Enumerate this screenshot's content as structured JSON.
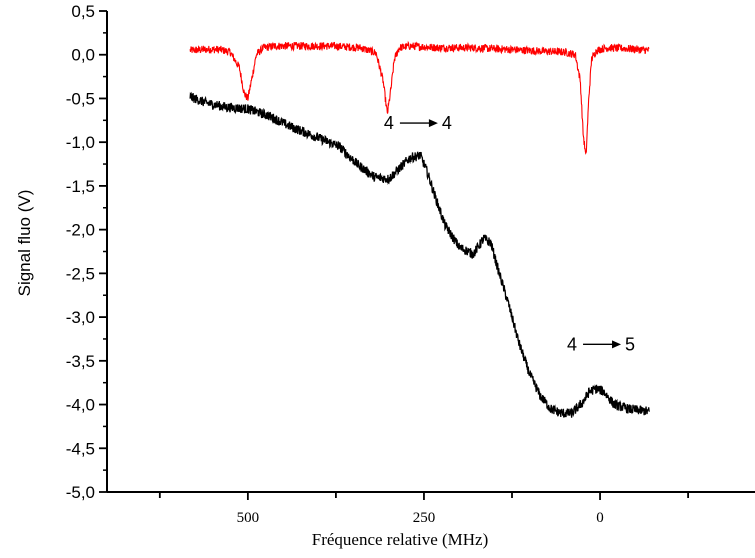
{
  "chart_data": {
    "type": "line",
    "title": "",
    "xlabel": "Fréquence relative (MHz)",
    "ylabel": "Signal fluo (V)",
    "x_reversed": true,
    "xlim": [
      700,
      -220
    ],
    "ylim": [
      -5.0,
      0.5
    ],
    "x_ticks": [
      500,
      250,
      0
    ],
    "x_tick_labels": [
      "500",
      "250",
      "0"
    ],
    "y_ticks": [
      0.5,
      0.0,
      -0.5,
      -1.0,
      -1.5,
      -2.0,
      -2.5,
      -3.0,
      -3.5,
      -4.0,
      -4.5,
      -5.0
    ],
    "y_tick_labels": [
      "0,5",
      "0,0",
      "-0,5",
      "-1,0",
      "-1,5",
      "-2,0",
      "-2,5",
      "-3,0",
      "-3,5",
      "-4,0",
      "-4,5",
      "-5,0"
    ],
    "grid": false,
    "legend": "none",
    "series": [
      {
        "color": "#ff0000",
        "x": [
          582,
          560,
          540,
          525,
          512,
          505,
          500,
          495,
          488,
          478,
          460,
          420,
          380,
          340,
          318,
          308,
          302,
          297,
          292,
          285,
          270,
          230,
          180,
          130,
          80,
          50,
          35,
          28,
          24,
          20,
          16,
          12,
          5,
          -10,
          -40,
          -70
        ],
        "y": [
          0.05,
          0.06,
          0.06,
          0.03,
          -0.15,
          -0.45,
          -0.5,
          -0.3,
          0.0,
          0.08,
          0.1,
          0.1,
          0.1,
          0.08,
          0.02,
          -0.3,
          -0.68,
          -0.4,
          -0.05,
          0.08,
          0.1,
          0.08,
          0.08,
          0.06,
          0.04,
          0.03,
          0.0,
          -0.3,
          -0.9,
          -1.18,
          -0.5,
          -0.05,
          0.05,
          0.08,
          0.07,
          0.05
        ]
      },
      {
        "color": "#000000",
        "x": [
          582,
          560,
          530,
          500,
          470,
          440,
          400,
          370,
          345,
          320,
          300,
          285,
          270,
          255,
          245,
          235,
          220,
          200,
          180,
          165,
          155,
          145,
          130,
          115,
          100,
          85,
          70,
          55,
          40,
          25,
          15,
          5,
          -5,
          -20,
          -40,
          -70
        ],
        "y": [
          -0.48,
          -0.55,
          -0.6,
          -0.62,
          -0.7,
          -0.82,
          -0.95,
          -1.05,
          -1.25,
          -1.4,
          -1.42,
          -1.3,
          -1.18,
          -1.15,
          -1.35,
          -1.6,
          -1.95,
          -2.2,
          -2.28,
          -2.1,
          -2.15,
          -2.45,
          -2.85,
          -3.3,
          -3.65,
          -3.9,
          -4.05,
          -4.1,
          -4.1,
          -3.98,
          -3.85,
          -3.82,
          -3.85,
          -4.0,
          -4.05,
          -4.08
        ]
      }
    ],
    "annotations": [
      {
        "text": "4",
        "to": "4",
        "x": 260,
        "y": -0.85
      },
      {
        "text": "4",
        "to": "5",
        "x": 0,
        "y": -3.38
      }
    ]
  }
}
